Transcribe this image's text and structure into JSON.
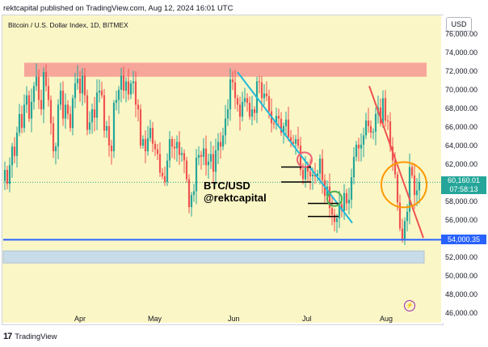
{
  "header": {
    "publisher_line": "rektcapital published on TradingView.com, Aug 12, 2024 16:01 UTC"
  },
  "symbol_line": "Bitcoin / U.S. Dollar Index, 1D, BITMEX",
  "currency": "USD",
  "overlay": {
    "pair": "BTC/USD",
    "handle": "@rektcapital"
  },
  "footer": {
    "brand": "TradingView",
    "logo": "17"
  },
  "colors": {
    "background": "#fbf6c5",
    "up": "#26a69a",
    "down": "#ef5350",
    "support_line": "#2962ff",
    "resistance_zone": "#f7a69a",
    "support_zone": "#c8dbe8",
    "trendline_cyan": "#22b8d9",
    "trendline_red": "#ef5350",
    "circle_red": "#f06077",
    "circle_green": "#4caf50",
    "circle_orange": "#ff9800"
  },
  "icons": {
    "bolt": "lightning-icon"
  },
  "chart_data": {
    "type": "candlestick",
    "title": "Bitcoin / U.S. Dollar Index, 1D, BITMEX",
    "xlabel": "",
    "ylabel": "",
    "ylim": [
      45000,
      78000
    ],
    "grid": false,
    "x_tick_labels": [
      "Apr",
      "May",
      "Jun",
      "Jul",
      "Aug"
    ],
    "y_tick_labels": [
      "76,000.00",
      "74,000.00",
      "72,000.00",
      "70,000.00",
      "68,000.00",
      "66,000.00",
      "64,000.00",
      "62,000.00",
      "60,000.00",
      "58,000.00",
      "56,000.00",
      "54,000.00",
      "52,000.00",
      "50,000.00",
      "48,000.00",
      "46,000.00"
    ],
    "y_ticks": [
      76000,
      74000,
      72000,
      70000,
      68000,
      66000,
      64000,
      62000,
      60000,
      58000,
      56000,
      54000,
      52000,
      50000,
      48000,
      46000
    ],
    "current_price": {
      "value": 60160.01,
      "label": "60,160.01",
      "countdown": "07:58:13"
    },
    "support_level": {
      "value": 54000.35,
      "label": "54,000.35"
    },
    "zones": [
      {
        "name": "resistance",
        "from": 71500,
        "to": 73000
      },
      {
        "name": "support",
        "from": 51500,
        "to": 52800
      }
    ],
    "trendlines": [
      {
        "name": "cyan downtrend",
        "from": [
          "2024-06-03",
          72000
        ],
        "to": [
          "2024-07-10",
          55800
        ]
      },
      {
        "name": "red downtrend",
        "from": [
          "2024-07-31",
          70500
        ],
        "to": [
          "2024-08-12",
          54200
        ]
      }
    ],
    "series": [
      {
        "name": "BTC/USD",
        "closes": [
          61500,
          60000,
          62000,
          64000,
          63000,
          65500,
          67500,
          66000,
          68500,
          69500,
          67000,
          68800,
          70500,
          71500,
          69000,
          68000,
          72000,
          70500,
          69000,
          66500,
          63500,
          64000,
          68500,
          70000,
          67000,
          68500,
          67500,
          66000,
          69200,
          70800,
          71300,
          69700,
          71600,
          69500,
          65800,
          66600,
          68000,
          67100,
          69800,
          70000,
          69500,
          65700,
          66200,
          64100,
          63500,
          68700,
          69000,
          70100,
          71600,
          70000,
          71000,
          69600,
          70800,
          71000,
          68500,
          68000,
          64100,
          64800,
          63500,
          64900,
          66000,
          64300,
          63700,
          63200,
          61200,
          60800,
          60200,
          62500,
          64800,
          64000,
          63800,
          64500,
          63100,
          63300,
          62500,
          60500,
          57500,
          58800,
          59200,
          62800,
          63100,
          62900,
          63800,
          62000,
          62400,
          63200,
          61300,
          63600,
          64500,
          64000,
          65200,
          67000,
          68000,
          71200,
          70900,
          69200,
          68500,
          67200,
          68800,
          69200,
          68700,
          67200,
          68000,
          67600,
          71000,
          70900,
          69200,
          69700,
          69400,
          67800,
          66500,
          66400,
          67300,
          67000,
          65500,
          66200,
          66900,
          65000,
          64500,
          64300,
          64800,
          64100,
          61500,
          60500,
          61800,
          61300,
          60800,
          61000,
          60800,
          61100,
          62700,
          60400,
          58700,
          59700,
          57400,
          56700,
          55900,
          56300,
          57800,
          57100,
          59000,
          57900,
          58300,
          60700,
          62900,
          64200,
          63800,
          64200,
          65200,
          66800,
          66200,
          65500,
          65600,
          67500,
          68200,
          66500,
          69200,
          66800,
          66700,
          64000,
          62500,
          61000,
          58000,
          55200,
          54100,
          56000,
          57000,
          61800,
          60900,
          58800,
          59300,
          60200
        ]
      }
    ]
  }
}
